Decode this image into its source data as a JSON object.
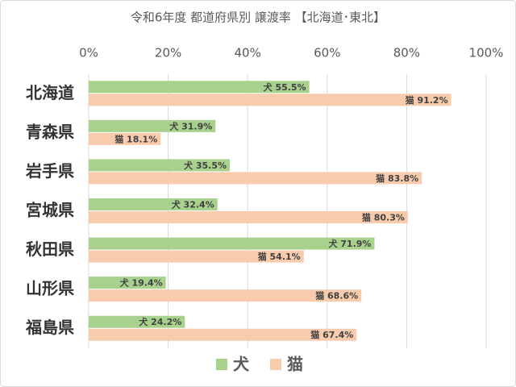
{
  "chart_data": {
    "type": "hbar",
    "title": "令和6年度 都道府県別 譲渡率 【北海道･東北】",
    "categories": [
      "北海道",
      "青森県",
      "岩手県",
      "宮城県",
      "秋田県",
      "山形県",
      "福島県"
    ],
    "series": [
      {
        "name": "犬",
        "color": "#a9d18e",
        "values": [
          55.5,
          31.9,
          35.5,
          32.4,
          71.9,
          19.4,
          24.2
        ],
        "value_labels": [
          "犬 55.5%",
          "犬 31.9%",
          "犬 35.5%",
          "犬 32.4%",
          "犬 71.9%",
          "犬 19.4%",
          "犬 24.2%"
        ]
      },
      {
        "name": "猫",
        "color": "#f8cbad",
        "values": [
          91.2,
          18.1,
          83.8,
          80.3,
          54.1,
          68.6,
          67.4
        ],
        "value_labels": [
          "猫 91.2%",
          "猫 18.1%",
          "猫 83.8%",
          "猫 80.3%",
          "猫 54.1%",
          "猫 68.6%",
          "猫 67.4%"
        ]
      }
    ],
    "xlim": [
      0,
      100
    ],
    "xticks": [
      {
        "value": 0,
        "label": "0%"
      },
      {
        "value": 20,
        "label": "20%"
      },
      {
        "value": 40,
        "label": "40%"
      },
      {
        "value": 60,
        "label": "60%"
      },
      {
        "value": 80,
        "label": "80%"
      },
      {
        "value": 100,
        "label": "100%"
      }
    ],
    "grid": true,
    "legend": "bottom"
  }
}
